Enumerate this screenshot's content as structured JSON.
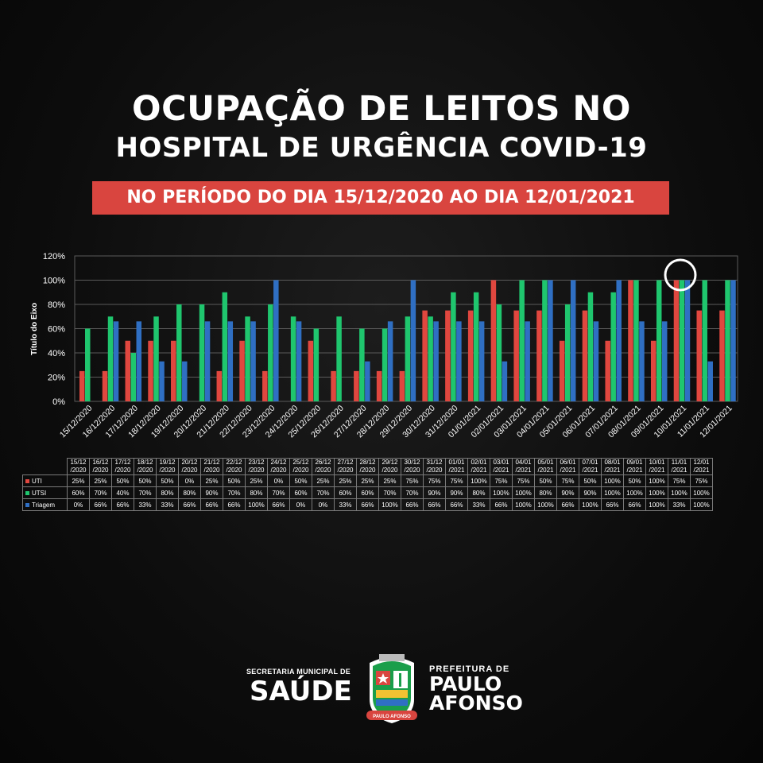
{
  "header": {
    "title_line1": "OCUPAÇÃO DE LEITOS NO",
    "title_line2": "HOSPITAL DE URGÊNCIA COVID-19",
    "banner": "NO PERÍODO DO DIA 15/12/2020 AO DIA 12/01/2021"
  },
  "chart_data": {
    "type": "bar",
    "ylabel": "Título do Eixo",
    "ylim": [
      0,
      120
    ],
    "yticks": [
      "0%",
      "20%",
      "40%",
      "60%",
      "80%",
      "100%",
      "120%"
    ],
    "grid": true,
    "categories": [
      "15/12/2020",
      "16/12/2020",
      "17/12/2020",
      "18/12/2020",
      "19/12/2020",
      "20/12/2020",
      "21/12/2020",
      "22/12/2020",
      "23/12/2020",
      "24/12/2020",
      "25/12/2020",
      "26/12/2020",
      "27/12/2020",
      "28/12/2020",
      "29/12/2020",
      "30/12/2020",
      "31/12/2020",
      "01/01/2021",
      "02/01/2021",
      "03/01/2021",
      "04/01/2021",
      "05/01/2021",
      "06/01/2021",
      "07/01/2021",
      "08/01/2021",
      "09/01/2021",
      "10/01/2021",
      "11/01/2021",
      "12/01/2021"
    ],
    "table_headers_top": [
      "15/12",
      "16/12",
      "17/12",
      "18/12",
      "19/12",
      "20/12",
      "21/12",
      "22/12",
      "23/12",
      "24/12",
      "25/12",
      "26/12",
      "27/12",
      "28/12",
      "29/12",
      "30/12",
      "31/12",
      "01/01",
      "02/01",
      "03/01",
      "04/01",
      "05/01",
      "06/01",
      "07/01",
      "08/01",
      "09/01",
      "10/01",
      "11/01",
      "12/01"
    ],
    "table_headers_bottom": [
      "/2020",
      "/2020",
      "/2020",
      "/2020",
      "/2020",
      "/2020",
      "/2020",
      "/2020",
      "/2020",
      "/2020",
      "/2020",
      "/2020",
      "/2020",
      "/2020",
      "/2020",
      "/2020",
      "/2020",
      "/2021",
      "/2021",
      "/2021",
      "/2021",
      "/2021",
      "/2021",
      "/2021",
      "/2021",
      "/2021",
      "/2021",
      "/2021",
      "/2021"
    ],
    "series": [
      {
        "name": "UTI",
        "color": "#e0473f",
        "values": [
          25,
          25,
          50,
          50,
          50,
          0,
          25,
          50,
          25,
          0,
          50,
          25,
          25,
          25,
          25,
          75,
          75,
          75,
          100,
          75,
          75,
          50,
          75,
          50,
          100,
          50,
          100,
          75,
          75
        ]
      },
      {
        "name": "UTSI",
        "color": "#1fc66e",
        "values": [
          60,
          70,
          40,
          70,
          80,
          80,
          90,
          70,
          80,
          70,
          60,
          70,
          60,
          60,
          70,
          70,
          90,
          90,
          80,
          100,
          100,
          80,
          90,
          90,
          100,
          100,
          100,
          100,
          100
        ]
      },
      {
        "name": "Triagem",
        "color": "#2f6fc3",
        "values": [
          0,
          66,
          66,
          33,
          33,
          66,
          66,
          66,
          100,
          66,
          0,
          0,
          33,
          66,
          100,
          66,
          66,
          66,
          33,
          66,
          100,
          100,
          66,
          100,
          66,
          66,
          100,
          33,
          100
        ]
      }
    ],
    "highlight_category": "10/01/2021"
  },
  "footer": {
    "sec_small": "SECRETARIA MUNICIPAL DE",
    "sec_big": "SAÚDE",
    "pref_small": "PREFEITURA DE",
    "pref_line1": "PAULO",
    "pref_line2": "AFONSO",
    "crest_text": "PAULO AFONSO"
  }
}
